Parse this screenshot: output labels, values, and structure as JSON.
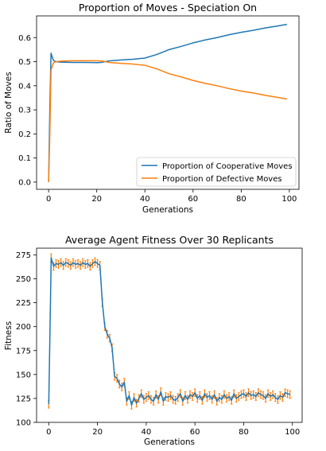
{
  "chart_data": [
    {
      "type": "line",
      "title": "Proportion of Moves - Speciation On",
      "xlabel": "Generations",
      "ylabel": "Ratio of Moves",
      "xlim": [
        -5,
        104
      ],
      "ylim": [
        -0.03,
        0.69
      ],
      "xticks": [
        0,
        20,
        40,
        60,
        80,
        100
      ],
      "yticks": [
        0.0,
        0.1,
        0.2,
        0.3,
        0.4,
        0.5,
        0.6
      ],
      "ytick_labels": [
        "0.0",
        "0.1",
        "0.2",
        "0.3",
        "0.4",
        "0.5",
        "0.6"
      ],
      "grid": false,
      "legend": "bottom-right",
      "series": [
        {
          "name": "Proportion of Cooperative Moves",
          "color": "#1f77b4",
          "x": [
            0,
            0.5,
            1,
            1.5,
            2,
            3,
            5,
            10,
            15,
            20,
            22,
            25,
            30,
            35,
            40,
            45,
            50,
            55,
            60,
            65,
            70,
            75,
            80,
            85,
            90,
            95,
            99
          ],
          "y": [
            0.0,
            0.3,
            0.535,
            0.52,
            0.505,
            0.5,
            0.498,
            0.497,
            0.497,
            0.496,
            0.497,
            0.503,
            0.507,
            0.51,
            0.515,
            0.53,
            0.55,
            0.563,
            0.578,
            0.59,
            0.6,
            0.612,
            0.622,
            0.63,
            0.64,
            0.648,
            0.655
          ]
        },
        {
          "name": "Proportion of Defective Moves",
          "color": "#ff7f0e",
          "x": [
            0,
            0.5,
            1,
            1.5,
            2,
            3,
            5,
            10,
            15,
            20,
            22,
            25,
            30,
            35,
            40,
            45,
            50,
            55,
            60,
            65,
            70,
            75,
            80,
            85,
            90,
            95,
            99
          ],
          "y": [
            0.0,
            0.2,
            0.465,
            0.48,
            0.495,
            0.5,
            0.502,
            0.504,
            0.504,
            0.504,
            0.503,
            0.497,
            0.493,
            0.49,
            0.485,
            0.47,
            0.45,
            0.437,
            0.422,
            0.41,
            0.4,
            0.388,
            0.378,
            0.37,
            0.36,
            0.352,
            0.345
          ]
        }
      ]
    },
    {
      "type": "line",
      "title": "Average Agent Fitness Over 30 Replicants",
      "xlabel": "Generations",
      "ylabel": "Fitness",
      "xlim": [
        -5,
        104
      ],
      "ylim": [
        100,
        282
      ],
      "xticks": [
        0,
        20,
        40,
        60,
        80,
        100
      ],
      "yticks": [
        100,
        125,
        150,
        175,
        200,
        225,
        250,
        275
      ],
      "grid": false,
      "series": [
        {
          "color": "#1f77b4",
          "error_bar_color": "#ff7f0e",
          "x": [
            0,
            1,
            2,
            3,
            4,
            5,
            6,
            7,
            8,
            9,
            10,
            11,
            12,
            13,
            14,
            15,
            16,
            17,
            18,
            19,
            20,
            21,
            22,
            23,
            24,
            25,
            26,
            27,
            28,
            29,
            30,
            31,
            32,
            33,
            34,
            35,
            36,
            37,
            38,
            39,
            40,
            41,
            42,
            43,
            44,
            45,
            46,
            47,
            48,
            49,
            50,
            51,
            52,
            53,
            54,
            55,
            56,
            57,
            58,
            59,
            60,
            61,
            62,
            63,
            64,
            65,
            66,
            67,
            68,
            69,
            70,
            71,
            72,
            73,
            74,
            75,
            76,
            77,
            78,
            79,
            80,
            81,
            82,
            83,
            84,
            85,
            86,
            87,
            88,
            89,
            90,
            91,
            92,
            93,
            94,
            95,
            96,
            97,
            98,
            99
          ],
          "y": [
            119,
            272,
            263,
            266,
            265,
            267,
            264,
            267,
            266,
            264,
            267,
            265,
            266,
            264,
            267,
            265,
            266,
            263,
            266,
            268,
            266,
            264,
            225,
            200,
            192,
            188,
            178,
            148,
            146,
            140,
            137,
            142,
            122,
            128,
            118,
            126,
            120,
            125,
            130,
            124,
            126,
            128,
            124,
            122,
            129,
            124,
            132,
            122,
            127,
            126,
            128,
            124,
            123,
            126,
            130,
            122,
            128,
            124,
            129,
            127,
            131,
            125,
            128,
            123,
            130,
            126,
            128,
            124,
            129,
            122,
            126,
            124,
            129,
            125,
            127,
            123,
            130,
            125,
            127,
            129,
            130,
            127,
            131,
            128,
            129,
            127,
            131,
            129,
            128,
            125,
            130,
            127,
            129,
            126,
            124,
            128,
            126,
            131,
            130,
            129
          ],
          "err": 4
        }
      ]
    }
  ]
}
